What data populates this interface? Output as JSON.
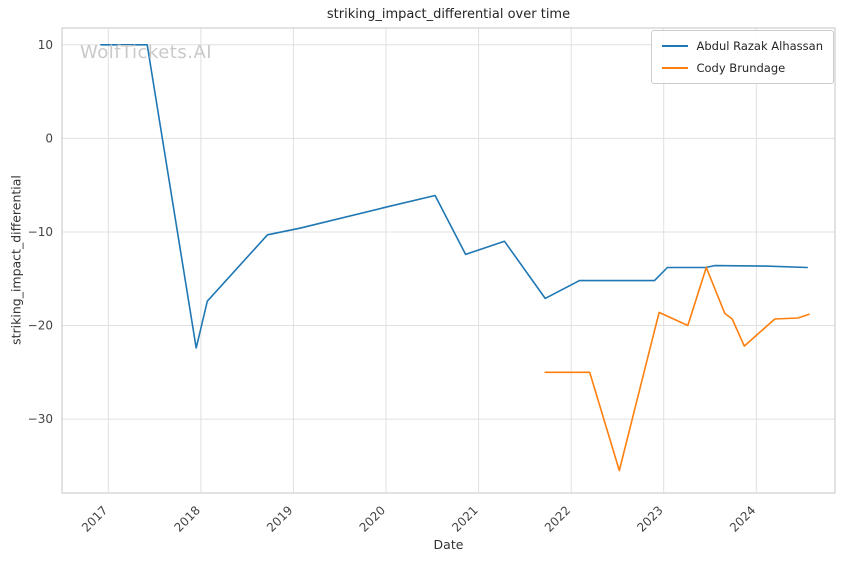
{
  "watermark": "WolfTickets.AI",
  "chart_data": {
    "type": "line",
    "title": "striking_impact_differential over time",
    "xlabel": "Date",
    "ylabel": "striking_impact_differential",
    "xlim": [
      2016.5,
      2024.85
    ],
    "ylim": [
      -37.9,
      11.8
    ],
    "x_ticks": [
      2017,
      2018,
      2019,
      2020,
      2021,
      2022,
      2023,
      2024
    ],
    "y_ticks": [
      10,
      0,
      -10,
      -20,
      -30
    ],
    "grid": true,
    "legend_position": "upper-right",
    "grid_color": "#e0e0e0",
    "frame_color": "#cfcfcf",
    "series": [
      {
        "name": "Abdul Razak Alhassan",
        "color": "#1f77b4",
        "x": [
          2016.92,
          2017.42,
          2017.95,
          2018.07,
          2018.72,
          2019.07,
          2020.02,
          2020.53,
          2020.86,
          2021.28,
          2021.72,
          2022.09,
          2022.9,
          2023.04,
          2023.45,
          2023.55,
          2024.1,
          2024.55
        ],
        "y": [
          10,
          10,
          -22.4,
          -17.4,
          -10.3,
          -9.6,
          -7.3,
          -6.1,
          -12.4,
          -11.0,
          -17.1,
          -15.2,
          -15.2,
          -13.8,
          -13.8,
          -13.6,
          -13.65,
          -13.8
        ]
      },
      {
        "name": "Cody Brundage",
        "color": "#ff7f0e",
        "x": [
          2021.72,
          2022.2,
          2022.52,
          2022.95,
          2023.26,
          2023.46,
          2023.66,
          2023.74,
          2023.87,
          2024.2,
          2024.45,
          2024.57
        ],
        "y": [
          -25,
          -25,
          -35.5,
          -18.6,
          -20.0,
          -13.8,
          -18.7,
          -19.3,
          -22.2,
          -19.3,
          -19.2,
          -18.8
        ]
      }
    ]
  }
}
